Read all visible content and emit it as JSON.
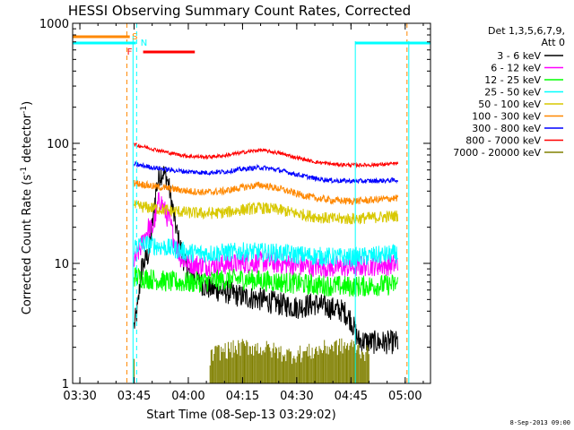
{
  "chart_data": {
    "type": "line",
    "title": "HESSI Observing Summary Count Rates, Corrected",
    "xlabel": "Start Time (08-Sep-13 03:29:02)",
    "ylabel": "Corrected Count Rate (s",
    "ylabel_sup1": "-1",
    "ylabel_mid": " detector",
    "ylabel_sup2": "-1",
    "ylabel_end": ")",
    "yscale": "log",
    "xlim": [
      "03:28",
      "05:07"
    ],
    "ylim": [
      1,
      1000
    ],
    "xticks": [
      "03:30",
      "03:45",
      "04:00",
      "04:15",
      "04:30",
      "04:45",
      "05:00"
    ],
    "xtick_minutes": [
      210,
      225,
      240,
      255,
      270,
      285,
      300
    ],
    "yticks": [
      "1",
      "10",
      "100",
      "1000"
    ],
    "ytick_values": [
      1,
      10,
      100,
      1000
    ],
    "legend_header": [
      "Det 1,3,5,6,7,9,",
      "Att 0"
    ],
    "legend_position": "right",
    "series": [
      {
        "name": "3 - 6 keV",
        "color": "#000000",
        "points": [
          [
            225,
            3
          ],
          [
            226,
            4.2
          ],
          [
            227,
            9
          ],
          [
            229,
            12
          ],
          [
            230,
            20
          ],
          [
            231,
            40
          ],
          [
            232,
            55
          ],
          [
            233,
            57
          ],
          [
            234,
            52
          ],
          [
            235,
            38
          ],
          [
            236,
            25
          ],
          [
            237,
            17
          ],
          [
            238,
            13
          ],
          [
            239,
            10
          ],
          [
            240,
            8.5
          ],
          [
            242,
            7.5
          ],
          [
            245,
            6.3
          ],
          [
            250,
            5.8
          ],
          [
            255,
            5.3
          ],
          [
            260,
            5.0
          ],
          [
            265,
            4.6
          ],
          [
            270,
            4.3
          ],
          [
            275,
            4.6
          ],
          [
            280,
            4.2
          ],
          [
            283,
            4.0
          ],
          [
            285,
            3.4
          ],
          [
            287,
            2.3
          ],
          [
            290,
            2.2
          ],
          [
            295,
            2.2
          ],
          [
            298,
            2.2
          ]
        ]
      },
      {
        "name": "6 - 12 keV",
        "color": "#ff00ff",
        "points": [
          [
            225,
            10
          ],
          [
            226,
            12
          ],
          [
            227,
            14
          ],
          [
            228,
            17
          ],
          [
            229,
            20
          ],
          [
            230,
            19
          ],
          [
            231,
            25
          ],
          [
            232,
            35
          ],
          [
            233,
            30
          ],
          [
            234,
            25
          ],
          [
            235,
            22
          ],
          [
            236,
            16
          ],
          [
            237,
            13
          ],
          [
            238,
            11
          ],
          [
            240,
            10
          ],
          [
            245,
            9.6
          ],
          [
            250,
            9.8
          ],
          [
            255,
            10
          ],
          [
            260,
            10.3
          ],
          [
            265,
            10
          ],
          [
            270,
            9.6
          ],
          [
            275,
            9.4
          ],
          [
            280,
            9.3
          ],
          [
            285,
            9.3
          ],
          [
            290,
            9.6
          ],
          [
            295,
            9.7
          ],
          [
            298,
            9.8
          ]
        ]
      },
      {
        "name": "12 - 25 keV",
        "color": "#00ff00",
        "points": [
          [
            225,
            7.8
          ],
          [
            230,
            7.4
          ],
          [
            235,
            7.0
          ],
          [
            240,
            6.9
          ],
          [
            245,
            7.1
          ],
          [
            250,
            7.3
          ],
          [
            255,
            7.4
          ],
          [
            260,
            7.2
          ],
          [
            265,
            7.0
          ],
          [
            270,
            6.8
          ],
          [
            275,
            6.6
          ],
          [
            280,
            6.5
          ],
          [
            285,
            6.4
          ],
          [
            290,
            6.5
          ],
          [
            295,
            6.6
          ],
          [
            298,
            6.7
          ]
        ]
      },
      {
        "name": "25 - 50 keV",
        "color": "#00ffff",
        "points": [
          [
            225,
            14
          ],
          [
            228,
            14.5
          ],
          [
            231,
            14
          ],
          [
            234,
            13.5
          ],
          [
            237,
            13
          ],
          [
            240,
            12.3
          ],
          [
            245,
            12.1
          ],
          [
            250,
            12.3
          ],
          [
            255,
            12.5
          ],
          [
            260,
            12.4
          ],
          [
            265,
            12.2
          ],
          [
            270,
            11.8
          ],
          [
            275,
            11.5
          ],
          [
            280,
            11.3
          ],
          [
            285,
            11.2
          ],
          [
            290,
            11.5
          ],
          [
            295,
            11.8
          ],
          [
            298,
            12
          ]
        ]
      },
      {
        "name": "50 - 100 keV",
        "color": "#d8c800",
        "points": [
          [
            225,
            30
          ],
          [
            230,
            29
          ],
          [
            235,
            27.5
          ],
          [
            240,
            26.5
          ],
          [
            245,
            26
          ],
          [
            250,
            26.5
          ],
          [
            255,
            28
          ],
          [
            260,
            29
          ],
          [
            265,
            28
          ],
          [
            270,
            26
          ],
          [
            275,
            24.5
          ],
          [
            280,
            23.5
          ],
          [
            285,
            23.5
          ],
          [
            290,
            24
          ],
          [
            295,
            24.5
          ],
          [
            298,
            25
          ]
        ]
      },
      {
        "name": "100 - 300 keV",
        "color": "#ff8800",
        "points": [
          [
            225,
            47
          ],
          [
            230,
            44
          ],
          [
            235,
            42
          ],
          [
            240,
            40
          ],
          [
            245,
            39
          ],
          [
            250,
            40
          ],
          [
            255,
            43
          ],
          [
            260,
            45
          ],
          [
            265,
            42
          ],
          [
            270,
            38
          ],
          [
            275,
            35
          ],
          [
            280,
            33.5
          ],
          [
            285,
            33
          ],
          [
            290,
            33.5
          ],
          [
            295,
            34.5
          ],
          [
            298,
            35
          ]
        ]
      },
      {
        "name": "300 - 800 keV",
        "color": "#0000ff",
        "points": [
          [
            225,
            67
          ],
          [
            230,
            63
          ],
          [
            235,
            60
          ],
          [
            240,
            58
          ],
          [
            245,
            57
          ],
          [
            250,
            58
          ],
          [
            255,
            61
          ],
          [
            260,
            63
          ],
          [
            265,
            60
          ],
          [
            270,
            55
          ],
          [
            275,
            51
          ],
          [
            280,
            49
          ],
          [
            285,
            48.5
          ],
          [
            290,
            48.5
          ],
          [
            295,
            49
          ],
          [
            298,
            49.5
          ]
        ]
      },
      {
        "name": "800 - 7000 keV",
        "color": "#ff0000",
        "points": [
          [
            225,
            98
          ],
          [
            230,
            90
          ],
          [
            235,
            83
          ],
          [
            240,
            78
          ],
          [
            245,
            77
          ],
          [
            250,
            79
          ],
          [
            255,
            84
          ],
          [
            260,
            88
          ],
          [
            265,
            83
          ],
          [
            270,
            76
          ],
          [
            275,
            70
          ],
          [
            280,
            67
          ],
          [
            285,
            66
          ],
          [
            290,
            66
          ],
          [
            295,
            67
          ],
          [
            298,
            68
          ]
        ]
      },
      {
        "name": "7000 - 20000 keV",
        "color": "#808000",
        "points": [
          [
            225,
            1.6
          ],
          [
            246,
            1.6
          ],
          [
            248,
            1.8
          ],
          [
            256,
            2.0
          ],
          [
            262,
            1.9
          ],
          [
            268,
            1.7
          ],
          [
            274,
            1.8
          ],
          [
            280,
            2.0
          ],
          [
            286,
            2.0
          ],
          [
            290,
            1.7
          ],
          [
            295,
            1.6
          ],
          [
            298,
            1.6
          ]
        ]
      }
    ],
    "annotations": {
      "flags": [
        {
          "label": "S",
          "color": "#ff8800"
        },
        {
          "label": "N",
          "color": "#00ffff"
        },
        {
          "label": "F",
          "color": "#ff0000"
        }
      ]
    }
  },
  "footer": {
    "timestamp": "8-Sep-2013 09:00"
  },
  "colors": {
    "background": "#ffffff",
    "axes": "#000000"
  }
}
